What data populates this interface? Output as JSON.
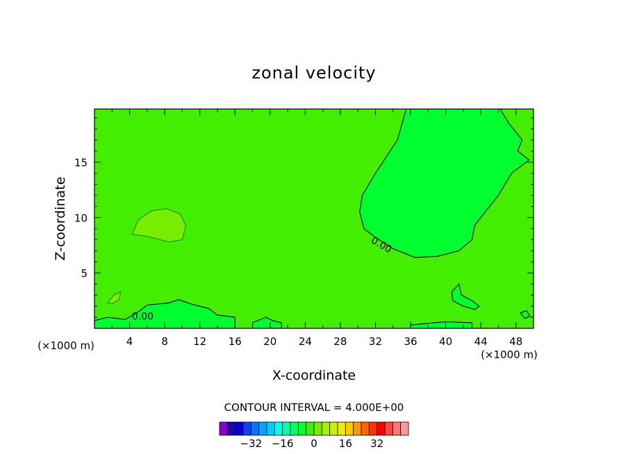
{
  "chart_data": {
    "type": "contour",
    "title": "zonal velocity",
    "xlabel": "X-coordinate",
    "ylabel": "Z-coordinate",
    "x_unit_note": "(×1000 m)",
    "x_unit_note_right": "(×1000 m)",
    "xlim": [
      0,
      50
    ],
    "ylim": [
      0,
      19.8
    ],
    "xticks": [
      4,
      8,
      12,
      16,
      20,
      24,
      28,
      32,
      36,
      40,
      44,
      48
    ],
    "yticks": [
      5,
      10,
      15
    ],
    "grid": false,
    "contour_interval_text": "CONTOUR INTERVAL = 4.000E+00",
    "contour_label": "0.00",
    "field_colors": {
      "background": "#44ee00",
      "negative": "#00ff2e",
      "positive": "#77ee00",
      "contour_line": "#000000"
    },
    "regions": [
      {
        "name": "negative-upper-right",
        "sign": "negative",
        "points": [
          [
            35.5,
            19.8
          ],
          [
            34.5,
            17
          ],
          [
            32,
            14
          ],
          [
            30.5,
            12
          ],
          [
            30.2,
            10.5
          ],
          [
            30.7,
            9
          ],
          [
            32,
            8.2
          ],
          [
            34,
            7.2
          ],
          [
            36.5,
            6.4
          ],
          [
            39,
            6.5
          ],
          [
            41.5,
            7
          ],
          [
            43,
            8
          ],
          [
            43.3,
            9.3
          ],
          [
            44.5,
            10.5
          ],
          [
            46,
            12
          ],
          [
            47.5,
            14
          ],
          [
            49.5,
            15.2
          ],
          [
            48.2,
            16
          ],
          [
            48.7,
            17
          ],
          [
            47.2,
            18.5
          ],
          [
            46.2,
            19.8
          ]
        ]
      },
      {
        "name": "positive-left-blob",
        "sign": "positive",
        "points": [
          [
            4.3,
            8.5
          ],
          [
            5,
            9.8
          ],
          [
            6.5,
            10.6
          ],
          [
            8.2,
            10.8
          ],
          [
            9.8,
            10.3
          ],
          [
            10.4,
            9.3
          ],
          [
            10,
            8
          ],
          [
            8.5,
            7.8
          ],
          [
            6,
            8.3
          ]
        ]
      },
      {
        "name": "negative-bottom-left",
        "sign": "negative",
        "points": [
          [
            0,
            0.7
          ],
          [
            1.5,
            1
          ],
          [
            3.5,
            0.8
          ],
          [
            5,
            1.5
          ],
          [
            6,
            2.1
          ],
          [
            8.5,
            2.3
          ],
          [
            9.6,
            2.6
          ],
          [
            11,
            2.2
          ],
          [
            13,
            1.8
          ],
          [
            14,
            1.2
          ],
          [
            16,
            1
          ],
          [
            16,
            0
          ],
          [
            0,
            0
          ]
        ]
      },
      {
        "name": "negative-bottom-mid",
        "sign": "negative",
        "points": [
          [
            18,
            0.5
          ],
          [
            19.5,
            1
          ],
          [
            20.3,
            0.7
          ],
          [
            21.3,
            0.5
          ],
          [
            21.3,
            0
          ],
          [
            18,
            0
          ]
        ]
      },
      {
        "name": "negative-bottom-right",
        "sign": "negative",
        "points": [
          [
            36,
            0.3
          ],
          [
            40,
            0.6
          ],
          [
            43,
            0.5
          ],
          [
            43,
            0
          ],
          [
            36,
            0
          ]
        ]
      },
      {
        "name": "negative-island-right",
        "sign": "negative",
        "points": [
          [
            40.7,
            3.3
          ],
          [
            41.5,
            4
          ],
          [
            41.8,
            3
          ],
          [
            43,
            2.5
          ],
          [
            43.8,
            2
          ],
          [
            43.3,
            1.7
          ],
          [
            42,
            2
          ],
          [
            40.8,
            2.5
          ]
        ]
      },
      {
        "name": "positive-small-left",
        "sign": "positive",
        "points": [
          [
            1.5,
            2.3
          ],
          [
            2.2,
            3
          ],
          [
            3,
            3.3
          ],
          [
            2.8,
            2.6
          ],
          [
            2,
            2.2
          ]
        ]
      },
      {
        "name": "negative-speck-right",
        "sign": "negative",
        "points": [
          [
            48.5,
            1.4
          ],
          [
            49.2,
            1.6
          ],
          [
            49.6,
            1.1
          ],
          [
            49,
            0.9
          ]
        ]
      }
    ],
    "contour_label_positions": [
      [
        5.5,
        1.1
      ],
      [
        32.5,
        7.6
      ]
    ],
    "colorbar": {
      "colors": [
        "#8800cc",
        "#2200aa",
        "#0000dd",
        "#1144ee",
        "#0077ff",
        "#00a6ff",
        "#00ccff",
        "#00ffee",
        "#00ffaa",
        "#00ff66",
        "#00ff2e",
        "#44ee00",
        "#77ee00",
        "#aaee00",
        "#ccee00",
        "#eeee00",
        "#ffcc00",
        "#ff9900",
        "#ff6600",
        "#ff3300",
        "#ff0000",
        "#ff4444",
        "#ff7777",
        "#ff9999"
      ],
      "vmin": -48,
      "vmax": 48,
      "interval": 4,
      "tick_values": [
        -32,
        -16,
        0,
        16,
        32
      ]
    }
  }
}
